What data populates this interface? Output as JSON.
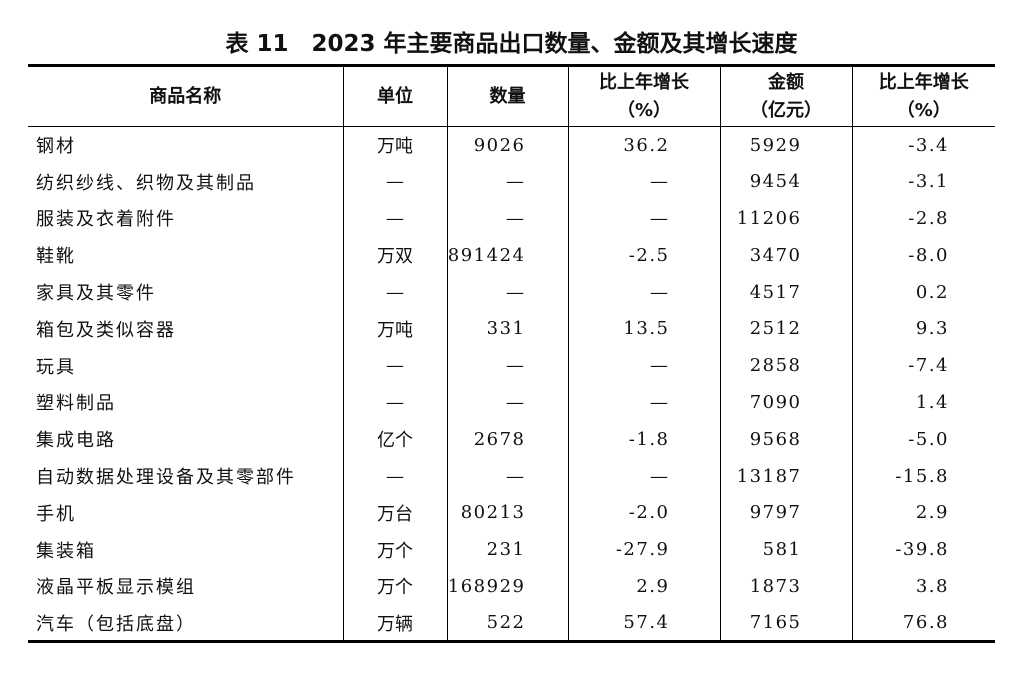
{
  "header": {
    "title": "表 11　2023 年主要商品出口数量、金额及其增长速度"
  },
  "table": {
    "columns": [
      [
        "商品名称"
      ],
      [
        "单位"
      ],
      [
        "数量"
      ],
      [
        "比上年增长",
        "（%）"
      ],
      [
        "金额",
        "（亿元）"
      ],
      [
        "比上年增长",
        "（%）"
      ]
    ],
    "rows": [
      [
        "钢材",
        "万吨",
        "9026",
        "36.2",
        "5929",
        "-3.4"
      ],
      [
        "纺织纱线、织物及其制品",
        "—",
        "—",
        "—",
        "9454",
        "-3.1"
      ],
      [
        "服装及衣着附件",
        "—",
        "—",
        "—",
        "11206",
        "-2.8"
      ],
      [
        "鞋靴",
        "万双",
        "891424",
        "-2.5",
        "3470",
        "-8.0"
      ],
      [
        "家具及其零件",
        "—",
        "—",
        "—",
        "4517",
        "0.2"
      ],
      [
        "箱包及类似容器",
        "万吨",
        "331",
        "13.5",
        "2512",
        "9.3"
      ],
      [
        "玩具",
        "—",
        "—",
        "—",
        "2858",
        "-7.4"
      ],
      [
        "塑料制品",
        "—",
        "—",
        "—",
        "7090",
        "1.4"
      ],
      [
        "集成电路",
        "亿个",
        "2678",
        "-1.8",
        "9568",
        "-5.0"
      ],
      [
        "自动数据处理设备及其零部件",
        "—",
        "—",
        "—",
        "13187",
        "-15.8"
      ],
      [
        "手机",
        "万台",
        "80213",
        "-2.0",
        "9797",
        "2.9"
      ],
      [
        "集装箱",
        "万个",
        "231",
        "-27.9",
        "581",
        "-39.8"
      ],
      [
        "液晶平板显示模组",
        "万个",
        "168929",
        "2.9",
        "1873",
        "3.8"
      ],
      [
        "汽车（包括底盘）",
        "万辆",
        "522",
        "57.4",
        "7165",
        "76.8"
      ]
    ]
  }
}
